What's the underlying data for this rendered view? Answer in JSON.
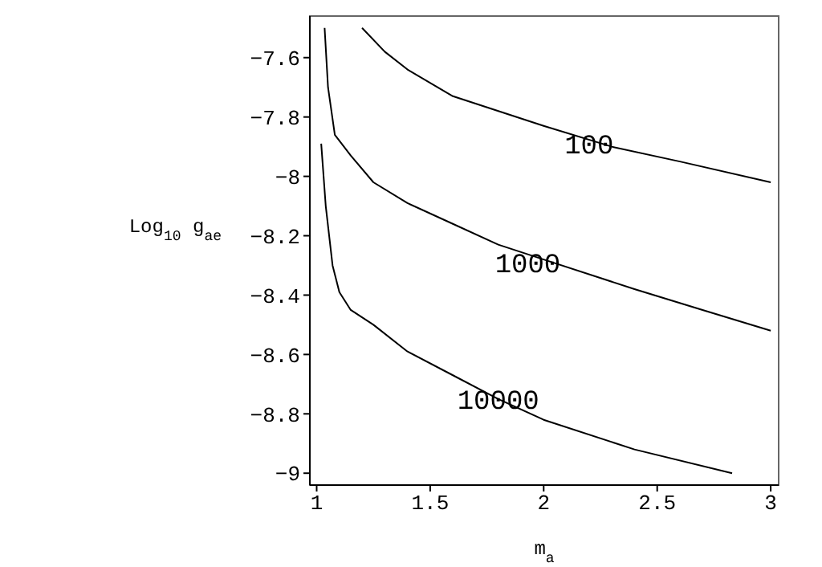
{
  "chart_data": {
    "type": "line",
    "xlabel": "m$_{a}$",
    "ylabel": "Log$_{10}$ g$_{ae}$",
    "xlim": [
      0.97,
      3.035
    ],
    "ylim": [
      -9.04,
      -7.46
    ],
    "xticks": [
      1,
      1.5,
      2,
      2.5,
      3
    ],
    "yticks": [
      -7.6,
      -7.8,
      -8,
      -8.2,
      -8.4,
      -8.6,
      -8.8,
      -9
    ],
    "grid": false,
    "legend": false,
    "marker": "none",
    "line_style": "solid",
    "series": [
      {
        "color": "#000000",
        "x": [
          1.2,
          1.3,
          1.4,
          1.6,
          1.8,
          2.0,
          2.3,
          2.6,
          3.0
        ],
        "values": [
          -7.5,
          -7.58,
          -7.64,
          -7.73,
          -7.78,
          -7.83,
          -7.9,
          -7.95,
          -8.02
        ]
      },
      {
        "color": "#000000",
        "x": [
          1.035,
          1.05,
          1.08,
          1.15,
          1.25,
          1.4,
          1.6,
          1.8,
          2.0,
          2.4,
          2.7,
          3.0
        ],
        "values": [
          -7.5,
          -7.7,
          -7.86,
          -7.93,
          -8.02,
          -8.09,
          -8.16,
          -8.23,
          -8.28,
          -8.38,
          -8.45,
          -8.52
        ]
      },
      {
        "color": "#000000",
        "x": [
          1.02,
          1.04,
          1.07,
          1.1,
          1.15,
          1.25,
          1.4,
          1.6,
          1.8,
          2.0,
          2.4,
          2.83
        ],
        "values": [
          -7.89,
          -8.1,
          -8.3,
          -8.39,
          -8.45,
          -8.5,
          -8.59,
          -8.67,
          -8.75,
          -8.82,
          -8.92,
          -9.0
        ]
      }
    ],
    "annotations": [
      {
        "text": "100",
        "x": 2.2,
        "y": -7.89
      },
      {
        "text": "1000",
        "x": 1.93,
        "y": -8.29
      },
      {
        "text": "10000",
        "x": 1.8,
        "y": -8.75
      }
    ]
  }
}
